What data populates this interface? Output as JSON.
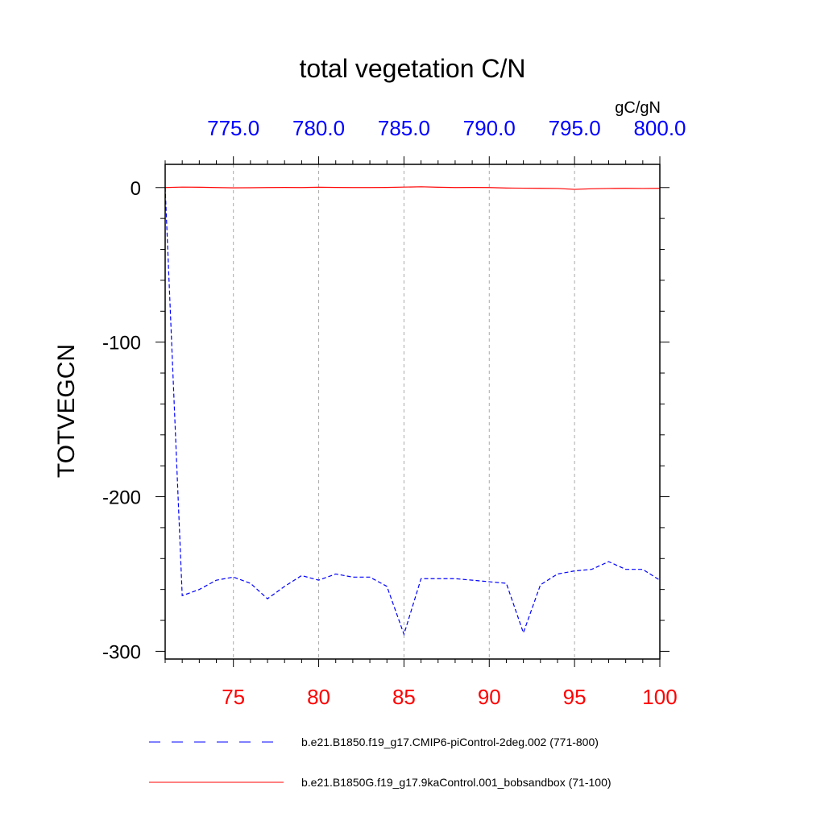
{
  "chart_data": {
    "type": "line",
    "title": "total vegetation C/N",
    "ylabel": "TOTVEGCN",
    "units": "gC/gN",
    "ylim": [
      -305,
      15
    ],
    "yticks": [
      0,
      -100,
      -200,
      -300
    ],
    "ytick_labels": [
      "0",
      "-100",
      "-200",
      "-300"
    ],
    "x_bottom": {
      "range": [
        71,
        100
      ],
      "ticks": [
        75,
        80,
        85,
        90,
        95,
        100
      ],
      "tick_labels": [
        "75",
        "80",
        "85",
        "90",
        "95",
        "100"
      ],
      "color": "#ff0000"
    },
    "x_top": {
      "range": [
        771,
        800
      ],
      "ticks": [
        775,
        780,
        785,
        790,
        795,
        800
      ],
      "tick_labels": [
        "775.0",
        "780.0",
        "785.0",
        "790.0",
        "795.0",
        "800.0"
      ],
      "color": "#0000ff"
    },
    "grid": "vertical-dashed",
    "legend_position": "bottom",
    "series": [
      {
        "name": "b.e21.B1850.f19_g17.CMIP6-piControl-2deg.002 (771-800)",
        "axis": "top",
        "color": "#0000ff",
        "style": "dashed",
        "x": [
          771,
          772,
          773,
          774,
          775,
          776,
          777,
          778,
          779,
          780,
          781,
          782,
          783,
          784,
          785,
          786,
          787,
          788,
          789,
          790,
          791,
          792,
          793,
          794,
          795,
          796,
          797,
          798,
          799,
          800
        ],
        "values": [
          0,
          -264,
          -260,
          -254,
          -252,
          -256,
          -266,
          -258,
          -251,
          -254,
          -250,
          -252,
          -252,
          -258,
          -289,
          -253,
          -253,
          -253,
          -254,
          -255,
          -256,
          -288,
          -257,
          -250,
          -248,
          -247,
          -242,
          -247,
          -247,
          -254
        ]
      },
      {
        "name": "b.e21.B1850G.f19_g17.9kaControl.001_bobsandbox (71-100)",
        "axis": "bottom",
        "color": "#ff0000",
        "style": "solid",
        "x": [
          71,
          72,
          73,
          74,
          75,
          76,
          77,
          78,
          79,
          80,
          81,
          82,
          83,
          84,
          85,
          86,
          87,
          88,
          89,
          90,
          91,
          92,
          93,
          94,
          95,
          96,
          97,
          98,
          99,
          100
        ],
        "values": [
          0,
          0.3,
          0.2,
          0,
          -0.2,
          -0.1,
          0,
          0.1,
          0,
          0.2,
          0.1,
          0,
          0,
          0.1,
          0.3,
          0.5,
          0.2,
          0,
          0.1,
          0,
          -0.3,
          -0.4,
          -0.5,
          -0.6,
          -1.2,
          -0.8,
          -0.6,
          -0.5,
          -0.6,
          -0.5
        ]
      }
    ]
  }
}
